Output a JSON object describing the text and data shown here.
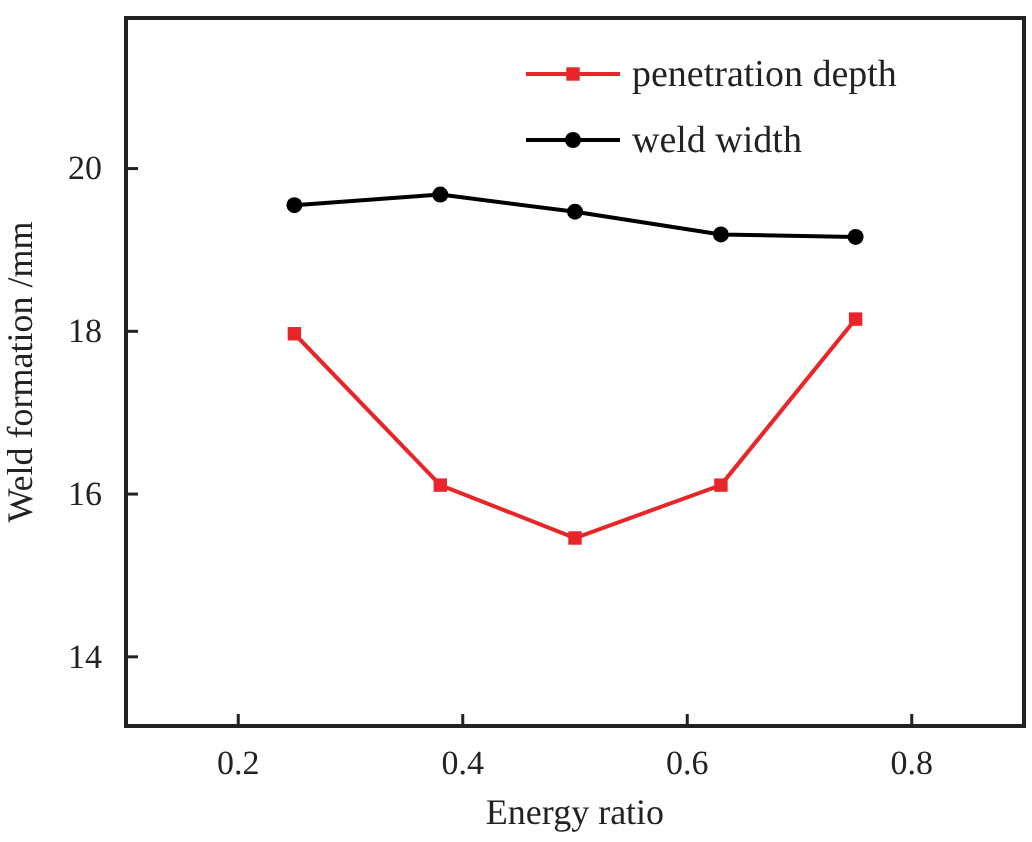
{
  "chart_data": {
    "type": "line",
    "xlabel": "Energy ratio",
    "ylabel": "Weld formation /mm",
    "x": [
      0.25,
      0.38,
      0.5,
      0.63,
      0.75
    ],
    "xlim": [
      0.1,
      0.9
    ],
    "xticks": [
      0.2,
      0.4,
      0.6,
      0.8
    ],
    "ylim": [
      13.15,
      21.85
    ],
    "yticks": [
      14,
      16,
      18,
      20
    ],
    "grid": false,
    "legend": "top right",
    "series": [
      {
        "name": "penetration depth",
        "color": "#e8262a",
        "marker": "square",
        "values": [
          17.97,
          16.11,
          15.46,
          16.11,
          18.15
        ]
      },
      {
        "name": "weld width",
        "color": "#000000",
        "marker": "circle",
        "values": [
          19.55,
          19.68,
          19.47,
          19.19,
          19.16
        ]
      }
    ]
  }
}
